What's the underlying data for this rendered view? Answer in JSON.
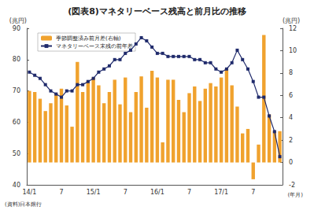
{
  "chart_data": {
    "type": "bar",
    "title": "(図表8)マネタリーベース残高と前月比の推移",
    "y_label": "(兆円)",
    "y2_label": "(兆円)",
    "x_label": "(年月)",
    "source": "(資料)日本銀行",
    "categories": [
      "14/1",
      null,
      null,
      null,
      null,
      null,
      "7",
      null,
      null,
      null,
      null,
      null,
      "15/1",
      null,
      null,
      null,
      null,
      null,
      "7",
      null,
      null,
      null,
      null,
      null,
      "16/1",
      null,
      null,
      null,
      null,
      null,
      "7",
      null,
      null,
      null,
      null,
      null,
      "17/1",
      null,
      null,
      null,
      null,
      null,
      "7",
      null,
      null,
      null,
      null,
      null
    ],
    "series": [
      {
        "name": "季節調整済み前月差(右軸)",
        "type": "bar",
        "axis": "y2",
        "color": "#f0a22e",
        "values": [
          6.4,
          6.3,
          5.7,
          4.6,
          5.3,
          6.2,
          6.6,
          5.1,
          3.2,
          9.0,
          6.3,
          7.3,
          7.6,
          6.9,
          5.3,
          6.3,
          7.4,
          5.2,
          7.6,
          4.5,
          6.3,
          7.7,
          4.9,
          8.2,
          7.6,
          1.8,
          7.4,
          7.4,
          5.6,
          4.5,
          6.2,
          6.8,
          5.5,
          6.6,
          7.1,
          6.8,
          7.6,
          8.4,
          6.9,
          5.0,
          2.6,
          3.0,
          -1.5,
          1.6,
          11.4,
          4.3,
          2.8,
          2.8
        ]
      },
      {
        "name": "マネタリーベース末残の前年差",
        "type": "line",
        "color": "#1f2a6b",
        "marker": "square",
        "values": [
          76,
          75,
          74,
          72,
          70,
          69,
          68,
          70,
          70,
          72,
          72,
          73,
          74,
          76,
          77,
          78,
          80,
          80,
          82,
          83,
          85,
          87,
          86,
          84,
          82,
          82,
          81,
          81,
          81,
          81,
          81,
          80,
          80,
          79,
          79,
          77,
          76,
          77,
          79,
          83,
          80,
          77,
          73,
          68,
          68,
          62,
          57,
          49
        ]
      }
    ],
    "ylim": [
      40,
      90
    ],
    "yticks": [
      40,
      50,
      60,
      70,
      80,
      90
    ],
    "y2lim": [
      -2,
      12
    ],
    "y2ticks": [
      -2,
      0,
      2,
      4,
      6,
      8,
      10,
      12
    ],
    "grid": false,
    "legend": "upper left"
  }
}
